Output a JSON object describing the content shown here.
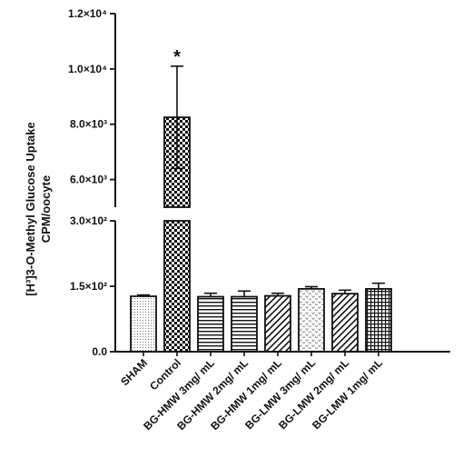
{
  "chart_data": {
    "type": "bar",
    "ylabel_line1": "[H³]3-O-Methyl Glucose Uptake",
    "ylabel_line2": "CPM/oocyte",
    "y_axis": {
      "segments": [
        {
          "range": [
            0,
            300
          ],
          "ticks": [
            0,
            150,
            300
          ],
          "tick_labels": [
            "0.0",
            "1.5×10²",
            "3.0×10²"
          ]
        },
        {
          "range": [
            5000,
            12000
          ],
          "ticks": [
            6000,
            8000,
            10000,
            12000
          ],
          "tick_labels": [
            "6.0×10³",
            "8.0×10³",
            "1.0×10⁴",
            "1.2×10⁴"
          ]
        }
      ]
    },
    "categories": [
      "SHAM",
      "Control",
      "BG-HMW 3mg/ mL",
      "BG-HMW 2mg/ mL",
      "BG-HMW 1mg/ mL",
      "BG-LMW 3mg/ mL",
      "BG-LMW 2mg/ mL",
      "BG-LMW 1mg/ mL"
    ],
    "values": [
      127,
      8250,
      126,
      126,
      128,
      144,
      133,
      144
    ],
    "errors": [
      3,
      1850,
      8,
      13,
      6,
      5,
      8,
      13
    ],
    "patterns": [
      "dots",
      "checker",
      "hlines",
      "hlines",
      "diag",
      "zigzag",
      "diag",
      "grid"
    ],
    "annotations": [
      {
        "category": "Control",
        "text": "*"
      }
    ]
  }
}
